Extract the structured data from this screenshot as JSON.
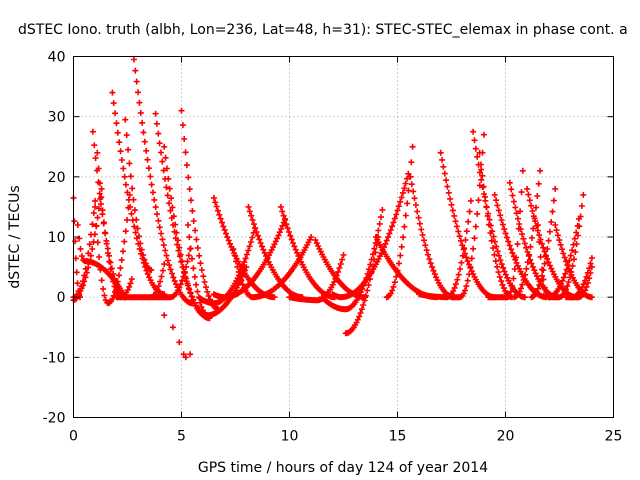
{
  "chart_data": {
    "type": "scatter",
    "title": "dSTEC Iono. truth (albh, Lon=236, Lat=48, h=31): STEC-STEC_elemax in phase cont. a",
    "xlabel": "GPS time / hours of day 124 of year 2014",
    "ylabel": "dSTEC  / TECUs",
    "xlim": [
      0,
      25
    ],
    "ylim": [
      -20,
      40
    ],
    "x_ticks": [
      0,
      5,
      10,
      15,
      20,
      25
    ],
    "y_ticks": [
      -20,
      -10,
      0,
      10,
      20,
      30,
      40
    ],
    "x_tick_labels": [
      "0",
      "5",
      "10",
      "15",
      "20",
      "25"
    ],
    "y_tick_labels": [
      "-20",
      "-10",
      "0",
      "10",
      "20",
      "30",
      "40"
    ],
    "grid": true,
    "marker": "+",
    "color": "#ff0000",
    "arcs": [
      {
        "start": 0.0,
        "end": 0.3,
        "min_t": 0.3,
        "y_start": 16.5,
        "y_min": 0.0,
        "y_end": 0.0
      },
      {
        "start": 0.0,
        "end": 1.3,
        "min_t": 0.0,
        "y_start": 0.0,
        "y_min": 0.0,
        "y_end": 18.0
      },
      {
        "start": 0.0,
        "end": 1.0,
        "min_t": 0.0,
        "y_start": -0.5,
        "y_min": -0.5,
        "y_end": 16.0
      },
      {
        "start": 0.2,
        "end": 2.4,
        "min_t": 0.5,
        "y_start": 12.0,
        "y_min": 6.0,
        "y_end": 0.0
      },
      {
        "start": 0.9,
        "end": 2.4,
        "min_t": 2.4,
        "y_start": 27.5,
        "y_min": 0.0,
        "y_end": 0.0
      },
      {
        "start": 1.1,
        "end": 2.7,
        "min_t": 2.2,
        "y_start": 24.0,
        "y_min": 0.0,
        "y_end": 3.0
      },
      {
        "start": 1.0,
        "end": 2.6,
        "min_t": 1.6,
        "y_start": 15.0,
        "y_min": -1.0,
        "y_end": 17.0
      },
      {
        "start": 1.8,
        "end": 4.2,
        "min_t": 4.2,
        "y_start": 34.0,
        "y_min": 0.5,
        "y_end": 0.5
      },
      {
        "start": 2.4,
        "end": 3.6,
        "min_t": 3.6,
        "y_start": 29.5,
        "y_min": 4.5,
        "y_end": 4.5
      },
      {
        "start": 2.8,
        "end": 5.5,
        "min_t": 5.5,
        "y_start": 39.5,
        "y_min": -1.0,
        "y_end": -1.0
      },
      {
        "start": 2.0,
        "end": 4.2,
        "min_t": 3.6,
        "y_start": 0.0,
        "y_min": 0.0,
        "y_end": 5.5
      },
      {
        "start": 3.8,
        "end": 6.3,
        "min_t": 6.3,
        "y_start": 30.5,
        "y_min": -3.5,
        "y_end": -3.5
      },
      {
        "start": 4.2,
        "end": 6.1,
        "min_t": 6.1,
        "y_start": 25.0,
        "y_min": -3.0,
        "y_end": -3.0
      },
      {
        "start": 3.6,
        "end": 5.4,
        "min_t": 4.5,
        "y_start": 0.0,
        "y_min": 0.0,
        "y_end": 8.0
      },
      {
        "start": 5.0,
        "end": 6.7,
        "min_t": 6.7,
        "y_start": 31.0,
        "y_min": -2.0,
        "y_end": -2.0
      },
      {
        "start": 5.3,
        "end": 8.0,
        "min_t": 6.2,
        "y_start": 12.0,
        "y_min": -3.0,
        "y_end": 5.0
      },
      {
        "start": 6.5,
        "end": 9.3,
        "min_t": 9.3,
        "y_start": 16.5,
        "y_min": 0.0,
        "y_end": 0.0
      },
      {
        "start": 5.8,
        "end": 8.4,
        "min_t": 6.5,
        "y_start": 0.0,
        "y_min": -1.0,
        "y_end": 11.5
      },
      {
        "start": 6.5,
        "end": 9.8,
        "min_t": 7.0,
        "y_start": 0.5,
        "y_min": 0.0,
        "y_end": 13.0
      },
      {
        "start": 7.4,
        "end": 11.0,
        "min_t": 8.3,
        "y_start": 8.0,
        "y_min": 0.0,
        "y_end": 10.0
      },
      {
        "start": 8.1,
        "end": 10.6,
        "min_t": 10.6,
        "y_start": 15.0,
        "y_min": 0.0,
        "y_end": 0.0
      },
      {
        "start": 9.6,
        "end": 12.1,
        "min_t": 12.1,
        "y_start": 15.0,
        "y_min": 0.0,
        "y_end": 0.0
      },
      {
        "start": 10.0,
        "end": 12.5,
        "min_t": 11.3,
        "y_start": 0.0,
        "y_min": -0.5,
        "y_end": 7.0
      },
      {
        "start": 11.2,
        "end": 13.5,
        "min_t": 13.5,
        "y_start": 9.5,
        "y_min": 0.0,
        "y_end": 0.0
      },
      {
        "start": 11.5,
        "end": 14.3,
        "min_t": 12.6,
        "y_start": 0.0,
        "y_min": -2.0,
        "y_end": 14.5
      },
      {
        "start": 12.6,
        "end": 14.1,
        "min_t": 12.6,
        "y_start": -6.0,
        "y_min": -6.0,
        "y_end": 10.0
      },
      {
        "start": 12.0,
        "end": 15.5,
        "min_t": 12.4,
        "y_start": 0.5,
        "y_min": 0.0,
        "y_end": 20.5
      },
      {
        "start": 14.0,
        "end": 16.8,
        "min_t": 16.8,
        "y_start": 10.0,
        "y_min": 0.0,
        "y_end": 0.0
      },
      {
        "start": 14.5,
        "end": 15.7,
        "min_t": 14.5,
        "y_start": 0.0,
        "y_min": 0.0,
        "y_end": 25.0
      },
      {
        "start": 15.6,
        "end": 17.6,
        "min_t": 17.6,
        "y_start": 20.0,
        "y_min": 0.0,
        "y_end": 0.0
      },
      {
        "start": 16.0,
        "end": 18.4,
        "min_t": 17.3,
        "y_start": 0.5,
        "y_min": 0.0,
        "y_end": 16.0
      },
      {
        "start": 17.0,
        "end": 19.5,
        "min_t": 19.5,
        "y_start": 24.0,
        "y_min": 0.0,
        "y_end": 0.0
      },
      {
        "start": 17.5,
        "end": 19.0,
        "min_t": 17.9,
        "y_start": 0.0,
        "y_min": 0.0,
        "y_end": 27.0
      },
      {
        "start": 18.5,
        "end": 20.9,
        "min_t": 20.9,
        "y_start": 27.5,
        "y_min": 0.0,
        "y_end": 0.0
      },
      {
        "start": 18.8,
        "end": 20.3,
        "min_t": 20.3,
        "y_start": 24.0,
        "y_min": 0.0,
        "y_end": 0.0
      },
      {
        "start": 19.2,
        "end": 20.8,
        "min_t": 20.1,
        "y_start": 0.0,
        "y_min": 0.0,
        "y_end": 21.0
      },
      {
        "start": 19.5,
        "end": 21.9,
        "min_t": 21.9,
        "y_start": 17.0,
        "y_min": 0.0,
        "y_end": 0.0
      },
      {
        "start": 20.2,
        "end": 22.4,
        "min_t": 22.4,
        "y_start": 19.0,
        "y_min": 0.0,
        "y_end": 0.0
      },
      {
        "start": 20.4,
        "end": 21.6,
        "min_t": 20.4,
        "y_start": 0.0,
        "y_min": 0.0,
        "y_end": 21.0
      },
      {
        "start": 21.0,
        "end": 23.3,
        "min_t": 23.3,
        "y_start": 18.0,
        "y_min": 0.0,
        "y_end": 0.0
      },
      {
        "start": 21.2,
        "end": 22.3,
        "min_t": 21.2,
        "y_start": 0.0,
        "y_min": 0.0,
        "y_end": 18.0
      },
      {
        "start": 21.5,
        "end": 23.4,
        "min_t": 22.0,
        "y_start": 12.0,
        "y_min": 0.0,
        "y_end": 13.0
      },
      {
        "start": 22.3,
        "end": 24.0,
        "min_t": 24.0,
        "y_start": 12.0,
        "y_min": 0.0,
        "y_end": 0.0
      },
      {
        "start": 22.0,
        "end": 23.6,
        "min_t": 22.5,
        "y_start": 0.0,
        "y_min": 0.0,
        "y_end": 17.0
      },
      {
        "start": 22.8,
        "end": 24.0,
        "min_t": 23.1,
        "y_start": 0.0,
        "y_min": 0.0,
        "y_end": 6.5
      },
      {
        "start": 23.0,
        "end": 24.0,
        "min_t": 23.4,
        "y_start": 0.0,
        "y_min": 0.0,
        "y_end": 5.0
      }
    ],
    "points": [
      [
        3.9,
        0.0
      ],
      [
        4.2,
        -3.0
      ],
      [
        4.6,
        -5.0
      ],
      [
        4.9,
        -7.5
      ],
      [
        5.1,
        -9.5
      ],
      [
        5.2,
        -10.0
      ],
      [
        5.4,
        -9.5
      ]
    ]
  }
}
